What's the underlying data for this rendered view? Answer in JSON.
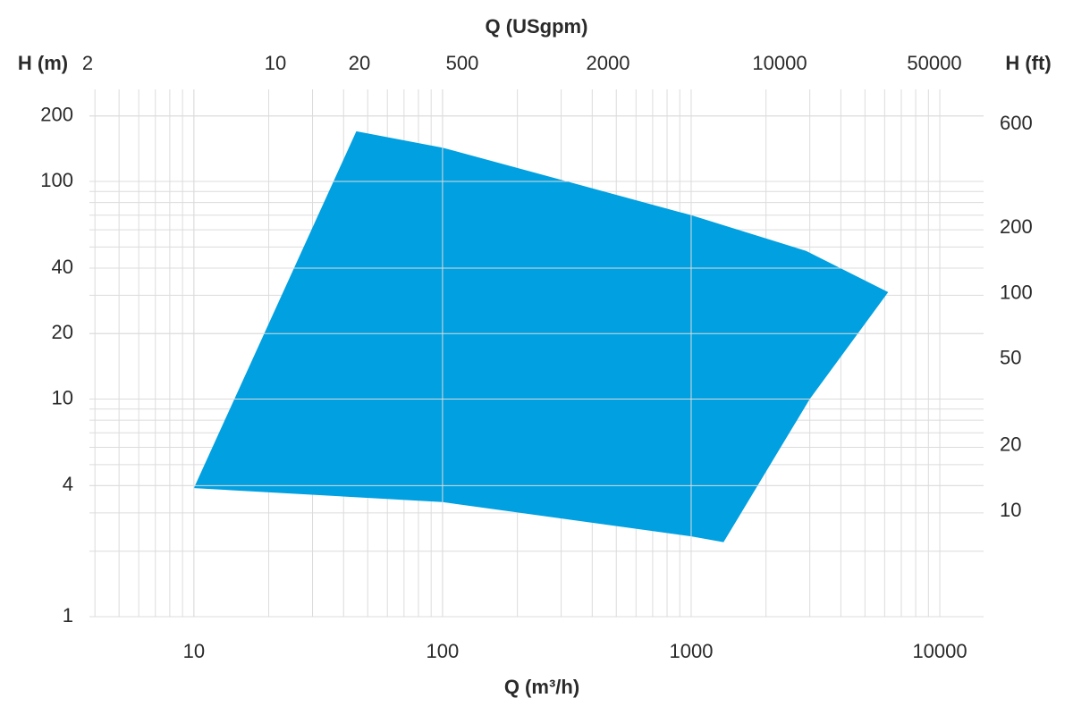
{
  "chart_data": {
    "type": "area",
    "x_label": "Q (m³/h)",
    "y_label": "H (m)",
    "y2_label": "H (ft)",
    "top_axis": {
      "label": "Q (USgpm)",
      "tick_labels": [
        "2",
        "10",
        "20",
        "500",
        "2000",
        "10000",
        "50000"
      ]
    },
    "log_x": true,
    "log_y": true,
    "grid": true,
    "xlim": [
      3.8,
      15000
    ],
    "xticks": [
      10,
      100,
      1000,
      10000
    ],
    "ylim": [
      1,
      265
    ],
    "yticks": [
      1,
      4,
      10,
      20,
      40,
      100,
      200
    ],
    "y2lim": [
      3.28,
      869
    ],
    "y2ticks": [
      10,
      20,
      50,
      100,
      200,
      600
    ],
    "series": [
      {
        "color": "#00a0e1",
        "x": [
          10,
          45,
          100,
          1000,
          2900,
          6200,
          3000,
          1350,
          1000,
          100
        ],
        "values": [
          3.9,
          170,
          143,
          70,
          48,
          31,
          10,
          2.2,
          2.34,
          3.36
        ]
      }
    ]
  }
}
